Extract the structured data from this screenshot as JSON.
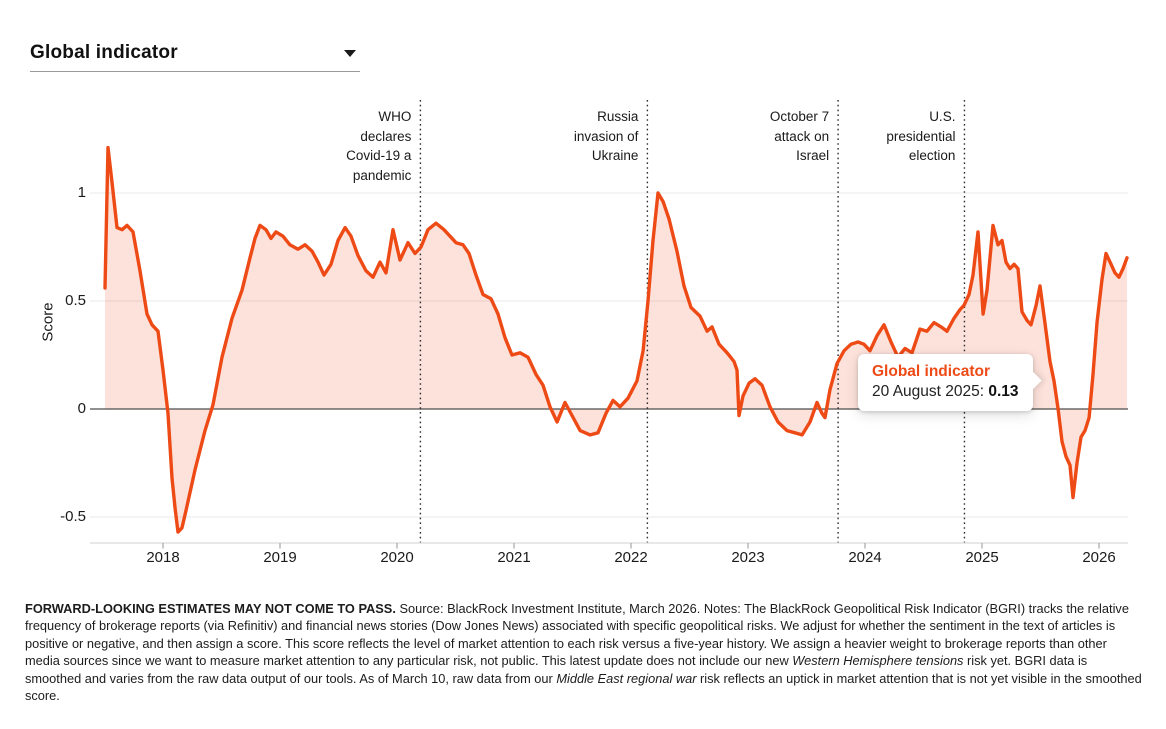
{
  "header": {
    "title": "Global indicator"
  },
  "chart": {
    "y_axis": {
      "label": "Score",
      "ticks": [
        {
          "v": 1,
          "label": "1"
        },
        {
          "v": 0.5,
          "label": "0.5"
        },
        {
          "v": 0,
          "label": "0"
        },
        {
          "v": -0.5,
          "label": "-0.5"
        }
      ]
    },
    "x_axis": {
      "ticks": [
        "2018",
        "2019",
        "2020",
        "2021",
        "2022",
        "2023",
        "2024",
        "2025",
        "2026"
      ]
    },
    "events": [
      {
        "name": "who-pandemic",
        "t": 2020.2,
        "lines": [
          "WHO",
          "declares",
          "Covid-19 a",
          "pandemic"
        ]
      },
      {
        "name": "russia-ukraine",
        "t": 2022.14,
        "lines": [
          "Russia",
          "invasion of",
          "Ukraine"
        ]
      },
      {
        "name": "october-7",
        "t": 2023.77,
        "lines": [
          "October 7",
          "attack on",
          "Israel"
        ]
      },
      {
        "name": "us-election",
        "t": 2024.85,
        "lines": [
          "U.S.",
          "presidential",
          "election"
        ]
      }
    ],
    "tooltip": {
      "title": "Global indicator",
      "date": "20 August 2025:",
      "value": "0.13"
    }
  },
  "chart_data": {
    "type": "area",
    "title": "BlackRock Geopolitical Risk Indicator (BGRI) — Global indicator",
    "xlabel": "",
    "ylabel": "Score",
    "xlim": [
      2017.45,
      2026.3
    ],
    "ylim": [
      -0.75,
      1.35
    ],
    "grid": "horizontal",
    "legend_position": "none",
    "highlight_point": {
      "date": "20 August 2025",
      "t": 2025.63,
      "value": 0.13
    },
    "series": [
      {
        "name": "Global indicator",
        "points": [
          [
            2017.504,
            0.56
          ],
          [
            2017.53,
            1.21
          ],
          [
            2017.564,
            1.05
          ],
          [
            2017.607,
            0.84
          ],
          [
            2017.65,
            0.83
          ],
          [
            2017.692,
            0.85
          ],
          [
            2017.744,
            0.82
          ],
          [
            2017.803,
            0.64
          ],
          [
            2017.863,
            0.44
          ],
          [
            2017.906,
            0.39
          ],
          [
            2017.957,
            0.36
          ],
          [
            2018.0,
            0.18
          ],
          [
            2018.043,
            -0.02
          ],
          [
            2018.077,
            -0.32
          ],
          [
            2018.103,
            -0.46
          ],
          [
            2018.128,
            -0.57
          ],
          [
            2018.162,
            -0.55
          ],
          [
            2018.197,
            -0.47
          ],
          [
            2018.274,
            -0.28
          ],
          [
            2018.359,
            -0.1
          ],
          [
            2018.427,
            0.02
          ],
          [
            2018.504,
            0.24
          ],
          [
            2018.59,
            0.42
          ],
          [
            2018.675,
            0.55
          ],
          [
            2018.744,
            0.7
          ],
          [
            2018.786,
            0.79
          ],
          [
            2018.829,
            0.85
          ],
          [
            2018.88,
            0.83
          ],
          [
            2018.923,
            0.79
          ],
          [
            2018.966,
            0.82
          ],
          [
            2019.026,
            0.8
          ],
          [
            2019.085,
            0.76
          ],
          [
            2019.154,
            0.74
          ],
          [
            2019.214,
            0.76
          ],
          [
            2019.274,
            0.73
          ],
          [
            2019.325,
            0.68
          ],
          [
            2019.376,
            0.62
          ],
          [
            2019.436,
            0.67
          ],
          [
            2019.496,
            0.78
          ],
          [
            2019.556,
            0.84
          ],
          [
            2019.607,
            0.8
          ],
          [
            2019.667,
            0.71
          ],
          [
            2019.735,
            0.64
          ],
          [
            2019.795,
            0.61
          ],
          [
            2019.855,
            0.68
          ],
          [
            2019.906,
            0.63
          ],
          [
            2019.966,
            0.83
          ],
          [
            2020.026,
            0.69
          ],
          [
            2020.094,
            0.77
          ],
          [
            2020.154,
            0.72
          ],
          [
            2020.205,
            0.75
          ],
          [
            2020.265,
            0.83
          ],
          [
            2020.333,
            0.86
          ],
          [
            2020.402,
            0.83
          ],
          [
            2020.453,
            0.8
          ],
          [
            2020.504,
            0.77
          ],
          [
            2020.564,
            0.76
          ],
          [
            2020.615,
            0.72
          ],
          [
            2020.675,
            0.62
          ],
          [
            2020.735,
            0.53
          ],
          [
            2020.803,
            0.51
          ],
          [
            2020.863,
            0.44
          ],
          [
            2020.923,
            0.33
          ],
          [
            2020.983,
            0.25
          ],
          [
            2021.051,
            0.26
          ],
          [
            2021.12,
            0.24
          ],
          [
            2021.188,
            0.16
          ],
          [
            2021.248,
            0.11
          ],
          [
            2021.308,
            0.01
          ],
          [
            2021.368,
            -0.06
          ],
          [
            2021.436,
            0.03
          ],
          [
            2021.496,
            -0.03
          ],
          [
            2021.565,
            -0.1
          ],
          [
            2021.65,
            -0.12
          ],
          [
            2021.718,
            -0.11
          ],
          [
            2021.786,
            -0.02
          ],
          [
            2021.846,
            0.04
          ],
          [
            2021.906,
            0.01
          ],
          [
            2021.974,
            0.05
          ],
          [
            2022.051,
            0.13
          ],
          [
            2022.103,
            0.27
          ],
          [
            2022.145,
            0.5
          ],
          [
            2022.188,
            0.78
          ],
          [
            2022.231,
            1.0
          ],
          [
            2022.274,
            0.96
          ],
          [
            2022.325,
            0.88
          ],
          [
            2022.393,
            0.73
          ],
          [
            2022.453,
            0.57
          ],
          [
            2022.513,
            0.47
          ],
          [
            2022.59,
            0.43
          ],
          [
            2022.65,
            0.36
          ],
          [
            2022.692,
            0.38
          ],
          [
            2022.752,
            0.3
          ],
          [
            2022.821,
            0.26
          ],
          [
            2022.88,
            0.22
          ],
          [
            2022.906,
            0.18
          ],
          [
            2022.923,
            -0.03
          ],
          [
            2022.957,
            0.06
          ],
          [
            2023.009,
            0.12
          ],
          [
            2023.06,
            0.14
          ],
          [
            2023.12,
            0.11
          ],
          [
            2023.188,
            0.01
          ],
          [
            2023.256,
            -0.06
          ],
          [
            2023.333,
            -0.1
          ],
          [
            2023.402,
            -0.11
          ],
          [
            2023.462,
            -0.12
          ],
          [
            2023.53,
            -0.06
          ],
          [
            2023.59,
            0.03
          ],
          [
            2023.632,
            -0.02
          ],
          [
            2023.658,
            -0.04
          ],
          [
            2023.701,
            0.09
          ],
          [
            2023.761,
            0.21
          ],
          [
            2023.821,
            0.27
          ],
          [
            2023.88,
            0.3
          ],
          [
            2023.94,
            0.31
          ],
          [
            2023.991,
            0.3
          ],
          [
            2024.043,
            0.27
          ],
          [
            2024.103,
            0.34
          ],
          [
            2024.162,
            0.39
          ],
          [
            2024.222,
            0.31
          ],
          [
            2024.282,
            0.24
          ],
          [
            2024.342,
            0.28
          ],
          [
            2024.402,
            0.26
          ],
          [
            2024.47,
            0.37
          ],
          [
            2024.53,
            0.36
          ],
          [
            2024.59,
            0.4
          ],
          [
            2024.65,
            0.38
          ],
          [
            2024.701,
            0.36
          ],
          [
            2024.761,
            0.42
          ],
          [
            2024.812,
            0.46
          ],
          [
            2024.846,
            0.48
          ],
          [
            2024.889,
            0.53
          ],
          [
            2024.923,
            0.62
          ],
          [
            2024.966,
            0.82
          ],
          [
            2025.009,
            0.44
          ],
          [
            2025.043,
            0.55
          ],
          [
            2025.094,
            0.85
          ],
          [
            2025.137,
            0.76
          ],
          [
            2025.171,
            0.78
          ],
          [
            2025.205,
            0.68
          ],
          [
            2025.239,
            0.65
          ],
          [
            2025.274,
            0.67
          ],
          [
            2025.308,
            0.65
          ],
          [
            2025.342,
            0.45
          ],
          [
            2025.385,
            0.41
          ],
          [
            2025.419,
            0.39
          ],
          [
            2025.462,
            0.48
          ],
          [
            2025.496,
            0.57
          ],
          [
            2025.538,
            0.4
          ],
          [
            2025.581,
            0.22
          ],
          [
            2025.615,
            0.13
          ],
          [
            2025.65,
            0.0
          ],
          [
            2025.684,
            -0.15
          ],
          [
            2025.718,
            -0.22
          ],
          [
            2025.752,
            -0.26
          ],
          [
            2025.778,
            -0.41
          ],
          [
            2025.812,
            -0.25
          ],
          [
            2025.846,
            -0.13
          ],
          [
            2025.88,
            -0.1
          ],
          [
            2025.915,
            -0.04
          ],
          [
            2025.949,
            0.16
          ],
          [
            2025.983,
            0.4
          ],
          [
            2026.026,
            0.6
          ],
          [
            2026.06,
            0.72
          ],
          [
            2026.103,
            0.67
          ],
          [
            2026.137,
            0.63
          ],
          [
            2026.171,
            0.61
          ],
          [
            2026.205,
            0.65
          ],
          [
            2026.239,
            0.7
          ]
        ]
      }
    ]
  },
  "colors": {
    "line": "#ee4a16",
    "fill": "rgba(238,74,22,0.16)",
    "grid": "#e9e9e9",
    "zero_line": "#4d4d4d",
    "event_line": "#2e2e2e",
    "baseline": "#d9d9d9",
    "tick_mark": "#a6a6a6",
    "tooltip_title": "#ee4a16"
  },
  "footer": {
    "segments": [
      {
        "text": "FORWARD-LOOKING ESTIMATES MAY NOT COME TO PASS. ",
        "bold": true
      },
      {
        "text": "Source: BlackRock Investment Institute, March 2026. Notes: The BlackRock Geopolitical Risk Indicator (BGRI) tracks the relative frequency of brokerage reports (via Refinitiv) and financial news stories (Dow Jones News) associated with specific geopolitical risks. We adjust for whether the sentiment in the text of articles is positive or negative, and then assign a score. This score reflects the level of market attention to each risk versus a five-year history. We assign a heavier weight to brokerage reports than other media sources since we want to measure market attention to any particular risk, not public. This latest update does not include our new "
      },
      {
        "text": "Western Hemisphere tensions",
        "italic": true
      },
      {
        "text": " risk yet. BGRI data is smoothed and varies from the raw data output of our tools. As of March 10, raw data from our "
      },
      {
        "text": "Middle East regional war",
        "italic": true
      },
      {
        "text": " risk reflects an uptick in market attention that is not yet visible in the smoothed score."
      }
    ]
  }
}
